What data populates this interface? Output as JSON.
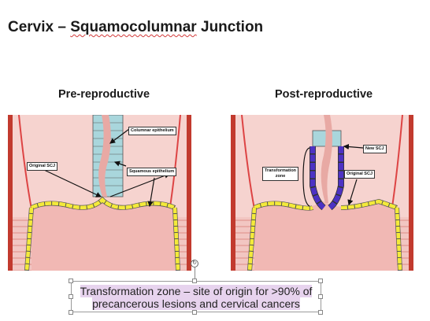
{
  "title": {
    "prefix": "Cervix – ",
    "highlight": "Squamocolumnar",
    "suffix": " Junction"
  },
  "panels": {
    "left": {
      "heading": "Pre-reproductive",
      "labels": {
        "columnar": "Columnar epithelium",
        "original_scj": "Original SCJ",
        "squamous": "Squamous epithelium"
      }
    },
    "right": {
      "heading": "Post-reproductive",
      "labels": {
        "new_scj": "New SCJ",
        "transformation_zone_line1": "Transformation",
        "transformation_zone_line2": "zone",
        "original_scj": "Original SCJ"
      }
    }
  },
  "caption": {
    "line1": "Transformation zone – site of origin for >90% of",
    "line2": "precancerous lesions and cervical cancers"
  },
  "colors": {
    "tissue": "#f2c6c2",
    "muscle_stripe": "#d98a86",
    "border_red": "#c23a2e",
    "columnar_cells": "#a9d6dc",
    "squamous_cells": "#f4ea3a",
    "metaplastic_cells": "#4d32c4",
    "caption_highlight": "#e7d3ee"
  },
  "icons": {
    "rotate": "rotate-handle-icon"
  }
}
